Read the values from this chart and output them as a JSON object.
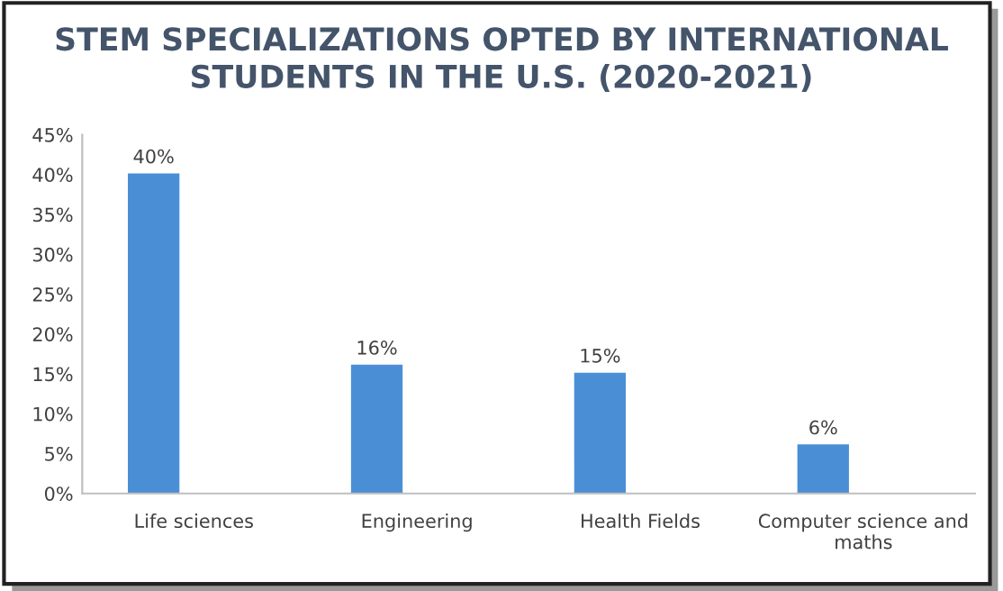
{
  "chart_data": {
    "type": "bar",
    "title": "STEM SPECIALIZATIONS OPTED BY INTERNATIONAL\nSTUDENTS IN THE U.S. (2020-2021)",
    "categories": [
      "Life sciences",
      "Engineering",
      "Health Fields",
      "Computer science and\nmaths"
    ],
    "values": [
      40,
      16,
      15,
      6
    ],
    "value_labels": [
      "40%",
      "16%",
      "15%",
      "6%"
    ],
    "color": "#4a8fd6",
    "ylim": [
      0,
      45
    ],
    "yticks": [
      {
        "value": 0,
        "label": "0%"
      },
      {
        "value": 5,
        "label": "5%"
      },
      {
        "value": 10,
        "label": "10%"
      },
      {
        "value": 15,
        "label": "15%"
      },
      {
        "value": 20,
        "label": "20%"
      },
      {
        "value": 25,
        "label": "25%"
      },
      {
        "value": 30,
        "label": "30%"
      },
      {
        "value": 35,
        "label": "35%"
      },
      {
        "value": 40,
        "label": "40%"
      },
      {
        "value": 45,
        "label": "45%"
      }
    ],
    "grid": false,
    "legend": false
  }
}
